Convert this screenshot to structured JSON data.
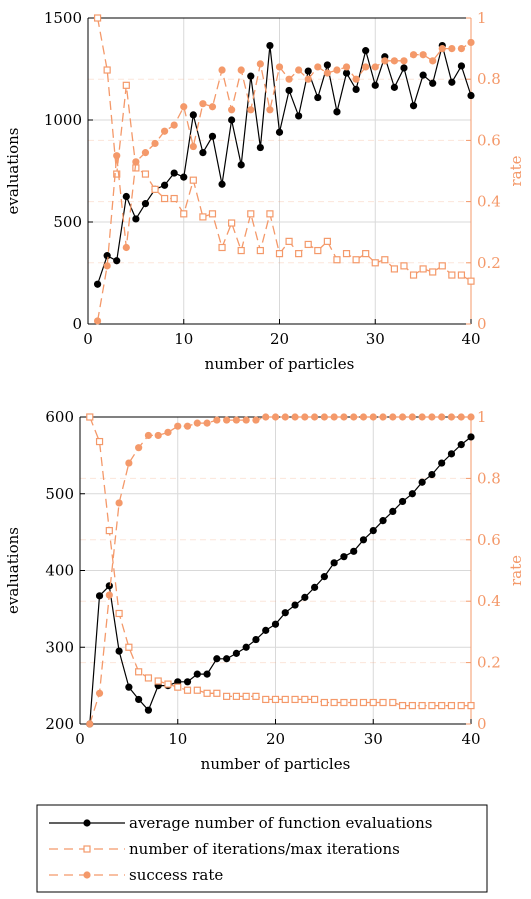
{
  "colors": {
    "evaluations": "#000000",
    "rate": "#F4996A",
    "grid": "#d9d9d9"
  },
  "legend": {
    "entries": [
      {
        "label": "average number of function evaluations",
        "marker": "filled-circle",
        "line": "solid",
        "color": "#000000"
      },
      {
        "label": "number of iterations/max iterations",
        "marker": "open-square",
        "line": "dashed",
        "color": "#F4996A"
      },
      {
        "label": "success rate",
        "marker": "filled-circle",
        "line": "dashed",
        "color": "#F4996A"
      }
    ]
  },
  "chart_data": [
    {
      "type": "line",
      "xlabel": "number of particles",
      "ylabel": "evaluations",
      "y2label": "rate",
      "xlim": [
        0,
        40
      ],
      "ylim": [
        0,
        1500
      ],
      "y2lim": [
        0,
        1
      ],
      "xticks": [
        0,
        10,
        20,
        30,
        40
      ],
      "yticks": [
        0,
        500,
        1000,
        1500
      ],
      "y2ticks": [
        0,
        0.2,
        0.4,
        0.6,
        0.8,
        1
      ],
      "y2ticklabels": [
        "0",
        "0.2",
        "0.4",
        "0.6",
        "0.8",
        "1"
      ],
      "grid": true,
      "x": [
        1,
        2,
        3,
        4,
        5,
        6,
        7,
        8,
        9,
        10,
        11,
        12,
        13,
        14,
        15,
        16,
        17,
        18,
        19,
        20,
        21,
        22,
        23,
        24,
        25,
        26,
        27,
        28,
        29,
        30,
        31,
        32,
        33,
        34,
        35,
        36,
        37,
        38,
        39,
        40
      ],
      "series": [
        {
          "name": "average number of function evaluations",
          "axis": "left",
          "values": [
            195,
            335,
            310,
            625,
            515,
            590,
            660,
            680,
            740,
            720,
            1025,
            840,
            920,
            685,
            1000,
            780,
            1215,
            865,
            1365,
            940,
            1145,
            1020,
            1240,
            1110,
            1270,
            1040,
            1230,
            1150,
            1340,
            1170,
            1310,
            1160,
            1255,
            1070,
            1220,
            1180,
            1365,
            1185,
            1265,
            1120
          ]
        },
        {
          "name": "number of iterations/max iterations",
          "axis": "right",
          "values": [
            1.0,
            0.83,
            0.49,
            0.78,
            0.51,
            0.49,
            0.44,
            0.41,
            0.41,
            0.36,
            0.47,
            0.35,
            0.36,
            0.25,
            0.33,
            0.24,
            0.36,
            0.24,
            0.36,
            0.23,
            0.27,
            0.23,
            0.26,
            0.24,
            0.27,
            0.21,
            0.23,
            0.21,
            0.23,
            0.2,
            0.21,
            0.18,
            0.19,
            0.16,
            0.18,
            0.17,
            0.19,
            0.16,
            0.16,
            0.14
          ]
        },
        {
          "name": "success rate",
          "axis": "right",
          "values": [
            0.01,
            0.19,
            0.55,
            0.25,
            0.53,
            0.56,
            0.59,
            0.63,
            0.65,
            0.71,
            0.58,
            0.72,
            0.71,
            0.83,
            0.7,
            0.83,
            0.7,
            0.85,
            0.7,
            0.84,
            0.8,
            0.83,
            0.8,
            0.84,
            0.82,
            0.83,
            0.84,
            0.8,
            0.84,
            0.84,
            0.86,
            0.86,
            0.86,
            0.88,
            0.88,
            0.86,
            0.9,
            0.9,
            0.9,
            0.92
          ]
        }
      ]
    },
    {
      "type": "line",
      "xlabel": "number of particles",
      "ylabel": "evaluations",
      "y2label": "rate",
      "xlim": [
        0,
        40
      ],
      "ylim": [
        200,
        600
      ],
      "y2lim": [
        0,
        1
      ],
      "xticks": [
        0,
        10,
        20,
        30,
        40
      ],
      "yticks": [
        200,
        300,
        400,
        500,
        600
      ],
      "y2ticks": [
        0,
        0.2,
        0.4,
        0.6,
        0.8,
        1
      ],
      "y2ticklabels": [
        "0",
        "0.2",
        "0.4",
        "0.6",
        "0.8",
        "1"
      ],
      "grid": true,
      "x": [
        1,
        2,
        3,
        4,
        5,
        6,
        7,
        8,
        9,
        10,
        11,
        12,
        13,
        14,
        15,
        16,
        17,
        18,
        19,
        20,
        21,
        22,
        23,
        24,
        25,
        26,
        27,
        28,
        29,
        30,
        31,
        32,
        33,
        34,
        35,
        36,
        37,
        38,
        39,
        40
      ],
      "series": [
        {
          "name": "average number of function evaluations",
          "axis": "left",
          "values": [
            200,
            367,
            380,
            295,
            248,
            232,
            218,
            250,
            250,
            255,
            255,
            265,
            265,
            285,
            285,
            292,
            300,
            310,
            322,
            330,
            345,
            355,
            365,
            378,
            392,
            410,
            418,
            425,
            440,
            452,
            465,
            477,
            490,
            500,
            515,
            525,
            540,
            552,
            564,
            574
          ]
        },
        {
          "name": "number of iterations/max iterations",
          "axis": "right",
          "values": [
            1.0,
            0.92,
            0.63,
            0.36,
            0.25,
            0.17,
            0.15,
            0.14,
            0.13,
            0.12,
            0.11,
            0.11,
            0.1,
            0.1,
            0.09,
            0.09,
            0.09,
            0.09,
            0.08,
            0.08,
            0.08,
            0.08,
            0.08,
            0.08,
            0.07,
            0.07,
            0.07,
            0.07,
            0.07,
            0.07,
            0.07,
            0.07,
            0.06,
            0.06,
            0.06,
            0.06,
            0.06,
            0.06,
            0.06,
            0.06
          ]
        },
        {
          "name": "success rate",
          "axis": "right",
          "values": [
            0.0,
            0.1,
            0.42,
            0.72,
            0.85,
            0.9,
            0.94,
            0.94,
            0.95,
            0.97,
            0.97,
            0.98,
            0.98,
            0.99,
            0.99,
            0.99,
            0.99,
            0.99,
            1.0,
            1.0,
            1.0,
            1.0,
            1.0,
            1.0,
            1.0,
            1.0,
            1.0,
            1.0,
            1.0,
            1.0,
            1.0,
            1.0,
            1.0,
            1.0,
            1.0,
            1.0,
            1.0,
            1.0,
            1.0,
            1.0
          ]
        }
      ]
    }
  ]
}
